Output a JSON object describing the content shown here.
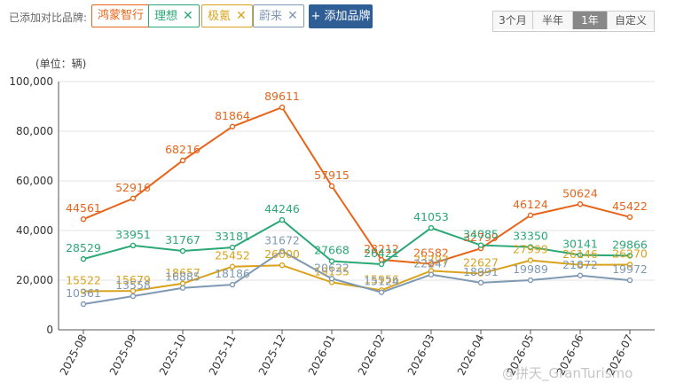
{
  "header": {
    "compare_label": "已添加对比品牌:",
    "brands": [
      {
        "name": "鸿蒙智行",
        "color": "#e8641a",
        "closable": false
      },
      {
        "name": "理想",
        "color": "#2aa876",
        "closable": true
      },
      {
        "name": "极氪",
        "color": "#d9a21b",
        "closable": true
      },
      {
        "name": "蔚来",
        "color": "#7f99b3",
        "closable": true
      }
    ],
    "close_glyph": "✕",
    "add_button": "+ 添加品牌",
    "ranges": [
      "3个月",
      "半年",
      "1年",
      "自定义"
    ],
    "active_range": "1年"
  },
  "unit_label": "(单位：辆)",
  "watermark": "@拼天_GranTurismo",
  "chart_data": {
    "type": "line",
    "categories": [
      "2025-08",
      "2025-09",
      "2025-10",
      "2025-11",
      "2025-12",
      "2026-01",
      "2026-02",
      "2026-03",
      "2026-04",
      "2026-05",
      "2026-06",
      "2026-07"
    ],
    "ylim": [
      0,
      100000
    ],
    "yticks": [
      0,
      20000,
      40000,
      60000,
      80000,
      100000
    ],
    "ytick_labels": [
      "0",
      "20,000",
      "40,000",
      "60,000",
      "80,000",
      "100,000"
    ],
    "grid": true,
    "series": [
      {
        "name": "鸿蒙智行",
        "color": "#e8641a",
        "values": [
          44561,
          52916,
          68216,
          81864,
          89611,
          57915,
          28212,
          26582,
          32799,
          46124,
          50624,
          45422
        ]
      },
      {
        "name": "理想",
        "color": "#2aa876",
        "values": [
          28529,
          33951,
          31767,
          33181,
          44246,
          27668,
          26421,
          41053,
          34085,
          33350,
          30141,
          29866
        ]
      },
      {
        "name": "极氪",
        "color": "#d9a21b",
        "values": [
          15522,
          15679,
          18657,
          25452,
          26000,
          19135,
          15956,
          23797,
          22627,
          27999,
          26146,
          26270
        ]
      },
      {
        "name": "蔚来",
        "color": "#7f99b3",
        "values": [
          10361,
          13558,
          16885,
          18186,
          31672,
          20622,
          15124,
          22247,
          18991,
          19989,
          21872,
          19972
        ]
      }
    ]
  }
}
